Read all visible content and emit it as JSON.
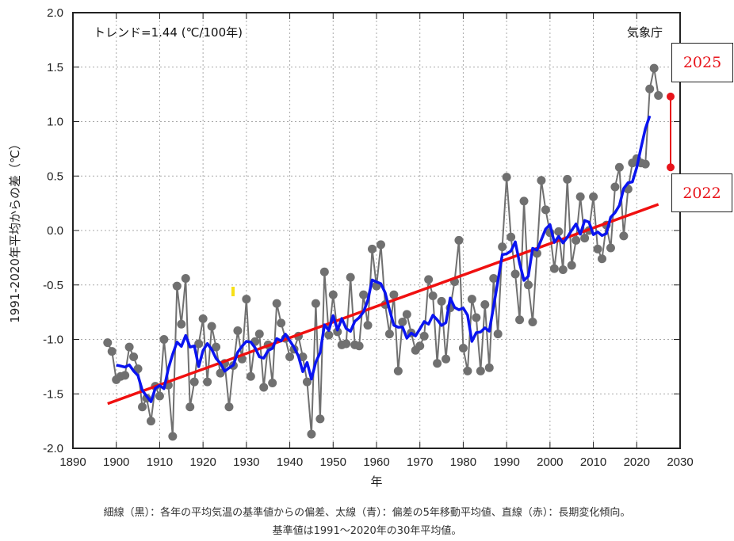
{
  "chart_data": {
    "type": "line",
    "title": "",
    "xlabel": "年",
    "ylabel": "1991-2020年平均からの差（℃）",
    "xlim": [
      1890,
      2030
    ],
    "ylim": [
      -2.0,
      2.0
    ],
    "grid": true,
    "x_ticks": [
      "1890",
      "1900",
      "1910",
      "1920",
      "1930",
      "1940",
      "1950",
      "1960",
      "1970",
      "1980",
      "1990",
      "2000",
      "2010",
      "2020",
      "2030"
    ],
    "y_ticks": [
      "2.0",
      "1.5",
      "1.0",
      "0.5",
      "0.0",
      "-0.5",
      "-1.0",
      "-1.5",
      "-2.0"
    ],
    "trend_label": "トレンド=1.44 (℃/100年)",
    "source_label": "気象庁",
    "series": [
      {
        "name": "各年の平均気温の基準値からの偏差",
        "color": "#707070",
        "x_start": 1898,
        "values": [
          -1.03,
          -1.11,
          -1.37,
          -1.34,
          -1.33,
          -1.07,
          -1.16,
          -1.27,
          -1.62,
          -1.54,
          -1.75,
          -1.43,
          -1.52,
          -1.0,
          -1.42,
          -1.89,
          -0.51,
          -0.86,
          -0.44,
          -1.62,
          -1.39,
          -1.04,
          -0.81,
          -1.39,
          -0.88,
          -1.07,
          -1.31,
          -1.22,
          -1.62,
          -1.24,
          -0.92,
          -1.18,
          -0.63,
          -1.34,
          -1.02,
          -0.95,
          -1.44,
          -1.05,
          -1.4,
          -0.67,
          -0.85,
          -0.99,
          -1.16,
          -1.09,
          -0.97,
          -1.16,
          -1.39,
          -1.87,
          -0.67,
          -1.73,
          -0.38,
          -0.96,
          -0.59,
          -0.93,
          -1.05,
          -1.04,
          -0.43,
          -1.05,
          -1.06,
          -0.59,
          -0.87,
          -0.17,
          -0.51,
          -0.13,
          -0.68,
          -0.95,
          -0.59,
          -1.29,
          -0.84,
          -0.77,
          -0.94,
          -1.1,
          -1.06,
          -0.97,
          -0.45,
          -0.6,
          -1.22,
          -0.65,
          -1.18,
          -0.71,
          -0.47,
          -0.09,
          -1.08,
          -1.29,
          -0.63,
          -0.8,
          -1.29,
          -0.68,
          -1.26,
          -0.44,
          -0.95,
          -0.15,
          0.49,
          -0.06,
          -0.4,
          -0.82,
          0.27,
          -0.5,
          -0.84,
          -0.21,
          0.46,
          0.19,
          -0.02,
          -0.35,
          -0.01,
          -0.36,
          0.47,
          -0.32,
          -0.09,
          0.31,
          -0.07,
          0.0,
          0.31,
          -0.17,
          -0.26,
          0.05,
          -0.16,
          0.4,
          0.58,
          -0.05,
          0.38,
          0.62,
          0.66,
          0.62,
          0.61,
          1.3,
          1.49,
          1.24
        ]
      },
      {
        "name": "偏差の5年移動平均値",
        "color": "#0a14f0",
        "method": "centered 5-year moving average of the annual series"
      },
      {
        "name": "長期変化傾向",
        "color": "#f01010",
        "x": [
          1898,
          2025
        ],
        "values": [
          -1.59,
          0.24
        ]
      }
    ],
    "annotations": [
      {
        "label": "2025",
        "color": "#e8141b"
      },
      {
        "label": "2022",
        "color": "#e8141b"
      }
    ],
    "highlight_range": {
      "color": "#e8141b",
      "from_value": 0.58,
      "to_value": 1.23
    }
  },
  "caption": {
    "line1": "細線（黒）：各年の平均気温の基準値からの偏差、太線（青）：偏差の5年移動平均値、直線（赤）：長期変化傾向。",
    "line2": "基準値は1991～2020年の30年平均値。"
  }
}
